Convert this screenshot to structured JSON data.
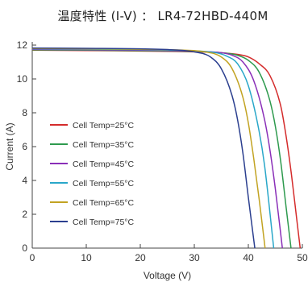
{
  "header": {
    "title": "温度特性 (I-V) ： LR4-72HBD-440M"
  },
  "chart_data": {
    "type": "line",
    "title": "温度特性 (I-V) ： LR4-72HBD-440M",
    "xlabel": "Voltage (V)",
    "ylabel": "Current (A)",
    "xlim": [
      0,
      50
    ],
    "ylim": [
      0,
      12
    ],
    "xticks": [
      0,
      10,
      20,
      30,
      40,
      50
    ],
    "yticks": [
      0,
      2,
      4,
      6,
      8,
      10,
      12
    ],
    "grid": false,
    "legend_position": "left",
    "series": [
      {
        "name": "Cell Temp=25°C",
        "color": "#d42b2b",
        "x": [
          0,
          10,
          20,
          30,
          35,
          38,
          40,
          42,
          44,
          46,
          47,
          48,
          49,
          49.6
        ],
        "y": [
          11.7,
          11.68,
          11.65,
          11.6,
          11.55,
          11.45,
          11.3,
          10.9,
          10.2,
          8.4,
          6.6,
          4.3,
          1.6,
          0
        ]
      },
      {
        "name": "Cell Temp=35°C",
        "color": "#2e9a4e",
        "x": [
          0,
          10,
          20,
          30,
          35,
          38,
          40,
          42,
          44,
          45,
          46,
          47,
          47.9
        ],
        "y": [
          11.72,
          11.7,
          11.67,
          11.62,
          11.55,
          11.4,
          11.1,
          10.4,
          8.7,
          7.2,
          5.1,
          2.4,
          0
        ]
      },
      {
        "name": "Cell Temp=45°C",
        "color": "#8a2fb8",
        "x": [
          0,
          10,
          20,
          30,
          35,
          37,
          39,
          41,
          43,
          44,
          45,
          46.3
        ],
        "y": [
          11.75,
          11.73,
          11.7,
          11.64,
          11.55,
          11.4,
          11.0,
          9.9,
          7.6,
          5.8,
          3.5,
          0
        ]
      },
      {
        "name": "Cell Temp=55°C",
        "color": "#29a7c9",
        "x": [
          0,
          10,
          20,
          30,
          34,
          36,
          38,
          40,
          42,
          43,
          44.7
        ],
        "y": [
          11.78,
          11.76,
          11.73,
          11.66,
          11.55,
          11.35,
          10.9,
          9.6,
          6.9,
          4.9,
          0
        ]
      },
      {
        "name": "Cell Temp=65°C",
        "color": "#c2a322",
        "x": [
          0,
          10,
          20,
          28,
          32,
          35,
          37,
          39,
          40,
          41,
          42,
          43.1
        ],
        "y": [
          11.8,
          11.78,
          11.75,
          11.7,
          11.6,
          11.3,
          10.6,
          8.9,
          7.4,
          5.3,
          2.9,
          0
        ]
      },
      {
        "name": "Cell Temp=75°C",
        "color": "#2b3f8f",
        "x": [
          0,
          10,
          20,
          26,
          30,
          33,
          35,
          37,
          38,
          39,
          40,
          41.2
        ],
        "y": [
          11.83,
          11.81,
          11.78,
          11.72,
          11.6,
          11.3,
          10.6,
          9.0,
          7.6,
          5.6,
          3.0,
          0
        ]
      }
    ]
  }
}
